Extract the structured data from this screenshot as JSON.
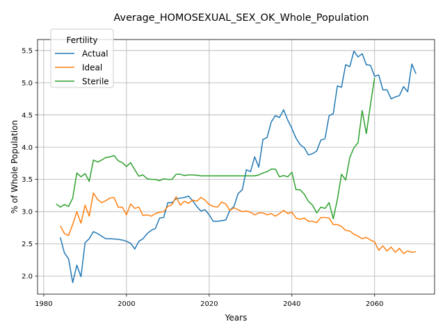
{
  "chart_data": {
    "type": "line",
    "title": "Average_HOMOSEXUAL_SEX_OK_Whole_Population",
    "xlabel": "Years",
    "ylabel": "% of Whole Population",
    "xlim": [
      1978.5,
      2074.5
    ],
    "ylim": [
      1.72,
      5.67
    ],
    "xticks": [
      1980,
      2000,
      2020,
      2040,
      2060
    ],
    "yticks": [
      2.0,
      2.5,
      3.0,
      3.5,
      4.0,
      4.5,
      5.0,
      5.5
    ],
    "xtick_labels": [
      "1980",
      "2000",
      "2020",
      "2040",
      "2060"
    ],
    "ytick_labels": [
      "2.0",
      "2.5",
      "3.0",
      "3.5",
      "4.0",
      "4.5",
      "5.0",
      "5.5"
    ],
    "grid": true,
    "legend_title": "Fertility",
    "legend_position": "upper-left",
    "series": [
      {
        "name": "Actual",
        "color": "#1f77b4",
        "x": [
          1984,
          1985,
          1986,
          1987,
          1988,
          1989,
          1990,
          1991,
          1992,
          1993,
          1994,
          1995,
          1996,
          1997,
          1998,
          1999,
          2000,
          2001,
          2002,
          2003,
          2004,
          2005,
          2006,
          2007,
          2008,
          2009,
          2010,
          2011,
          2012,
          2013,
          2014,
          2015,
          2016,
          2017,
          2018,
          2019,
          2020,
          2021,
          2022,
          2023,
          2024,
          2025,
          2026,
          2027,
          2028,
          2029,
          2030,
          2031,
          2032,
          2033,
          2034,
          2035,
          2036,
          2037,
          2038,
          2039,
          2040,
          2041,
          2042,
          2043,
          2044,
          2045,
          2046,
          2047,
          2048,
          2049,
          2050,
          2051,
          2052,
          2053,
          2054,
          2055,
          2056,
          2057,
          2058,
          2059,
          2060,
          2061,
          2062,
          2063,
          2064,
          2065,
          2066,
          2067,
          2068,
          2069,
          2070
        ],
        "values": [
          2.6,
          2.36,
          2.27,
          1.9,
          2.17,
          1.99,
          2.52,
          2.58,
          2.69,
          2.66,
          2.62,
          2.58,
          2.58,
          2.575,
          2.57,
          2.56,
          2.54,
          2.51,
          2.42,
          2.54,
          2.58,
          2.66,
          2.71,
          2.74,
          2.9,
          2.91,
          3.14,
          3.14,
          3.2,
          3.21,
          3.22,
          3.24,
          3.17,
          3.08,
          3.01,
          3.03,
          2.95,
          2.85,
          2.85,
          2.86,
          2.87,
          3.02,
          3.08,
          3.28,
          3.34,
          3.65,
          3.62,
          3.85,
          3.69,
          4.12,
          4.15,
          4.39,
          4.49,
          4.46,
          4.58,
          4.42,
          4.29,
          4.14,
          4.04,
          3.99,
          3.88,
          3.9,
          3.94,
          4.11,
          4.13,
          4.49,
          4.52,
          4.95,
          4.93,
          5.28,
          5.25,
          5.49,
          5.4,
          5.45,
          5.28,
          5.27,
          5.1,
          5.12,
          4.89,
          4.89,
          4.75,
          4.78,
          4.8,
          4.94,
          4.86,
          5.29,
          5.14
        ]
      },
      {
        "name": "Ideal",
        "color": "#ff7f0e",
        "x": [
          1984,
          1985,
          1986,
          1987,
          1988,
          1989,
          1990,
          1991,
          1992,
          1993,
          1994,
          1995,
          1996,
          1997,
          1998,
          1999,
          2000,
          2001,
          2002,
          2003,
          2004,
          2005,
          2006,
          2007,
          2008,
          2009,
          2010,
          2011,
          2012,
          2013,
          2014,
          2015,
          2016,
          2017,
          2018,
          2019,
          2020,
          2021,
          2022,
          2023,
          2024,
          2025,
          2026,
          2027,
          2028,
          2029,
          2030,
          2031,
          2032,
          2033,
          2034,
          2035,
          2036,
          2037,
          2038,
          2039,
          2040,
          2041,
          2042,
          2043,
          2044,
          2045,
          2046,
          2047,
          2048,
          2049,
          2050,
          2051,
          2052,
          2053,
          2054,
          2055,
          2056,
          2057,
          2058,
          2059,
          2060,
          2061,
          2062,
          2063,
          2064,
          2065,
          2066,
          2067,
          2068,
          2069,
          2070
        ],
        "values": [
          2.78,
          2.66,
          2.63,
          2.8,
          3.0,
          2.82,
          3.1,
          2.93,
          3.29,
          3.19,
          3.14,
          3.17,
          3.21,
          3.22,
          3.07,
          3.07,
          2.95,
          3.12,
          3.05,
          3.07,
          2.94,
          2.95,
          2.93,
          2.97,
          2.99,
          3.0,
          3.08,
          3.11,
          3.23,
          3.1,
          3.16,
          3.13,
          3.18,
          3.16,
          3.22,
          3.18,
          3.11,
          3.08,
          3.07,
          3.15,
          3.12,
          3.02,
          3.06,
          3.03,
          3.0,
          3.01,
          2.99,
          2.95,
          2.98,
          2.98,
          2.95,
          2.97,
          2.93,
          2.97,
          3.02,
          2.97,
          2.99,
          2.9,
          2.88,
          2.9,
          2.85,
          2.85,
          2.83,
          2.91,
          2.91,
          2.9,
          2.8,
          2.8,
          2.77,
          2.71,
          2.7,
          2.65,
          2.62,
          2.58,
          2.6,
          2.56,
          2.53,
          2.4,
          2.47,
          2.39,
          2.45,
          2.37,
          2.43,
          2.35,
          2.39,
          2.37,
          2.38
        ]
      },
      {
        "name": "Sterile",
        "color": "#2ca02c",
        "x": [
          1983,
          1984,
          1985,
          1986,
          1987,
          1988,
          1989,
          1990,
          1991,
          1992,
          1993,
          1994,
          1995,
          1996,
          1997,
          1998,
          1999,
          2000,
          2001,
          2002,
          2003,
          2004,
          2005,
          2006,
          2007,
          2008,
          2009,
          2010,
          2011,
          2012,
          2013,
          2014,
          2015,
          2016,
          2017,
          2018,
          2019,
          2020,
          2021,
          2022,
          2023,
          2024,
          2025,
          2026,
          2027,
          2028,
          2029,
          2030,
          2031,
          2032,
          2033,
          2034,
          2035,
          2036,
          2037,
          2038,
          2039,
          2040,
          2041,
          2042,
          2043,
          2044,
          2045,
          2046,
          2047,
          2048,
          2049,
          2050,
          2051,
          2052,
          2053,
          2054,
          2055,
          2056,
          2057,
          2058,
          2059,
          2060
        ],
        "values": [
          3.12,
          3.07,
          3.11,
          3.08,
          3.21,
          3.6,
          3.54,
          3.59,
          3.47,
          3.8,
          3.77,
          3.8,
          3.84,
          3.85,
          3.87,
          3.79,
          3.76,
          3.7,
          3.76,
          3.65,
          3.55,
          3.57,
          3.51,
          3.5,
          3.5,
          3.48,
          3.51,
          3.5,
          3.5,
          3.58,
          3.58,
          3.56,
          3.57,
          3.57,
          3.565,
          3.555,
          3.555,
          3.555,
          3.555,
          3.555,
          3.555,
          3.555,
          3.555,
          3.555,
          3.555,
          3.555,
          3.555,
          3.555,
          3.555,
          3.57,
          3.6,
          3.62,
          3.66,
          3.66,
          3.54,
          3.56,
          3.54,
          3.61,
          3.34,
          3.34,
          3.27,
          3.16,
          3.1,
          2.98,
          3.07,
          3.05,
          3.14,
          2.89,
          3.19,
          3.58,
          3.49,
          3.84,
          3.99,
          4.07,
          4.57,
          4.21,
          4.66,
          5.08
        ]
      }
    ]
  }
}
